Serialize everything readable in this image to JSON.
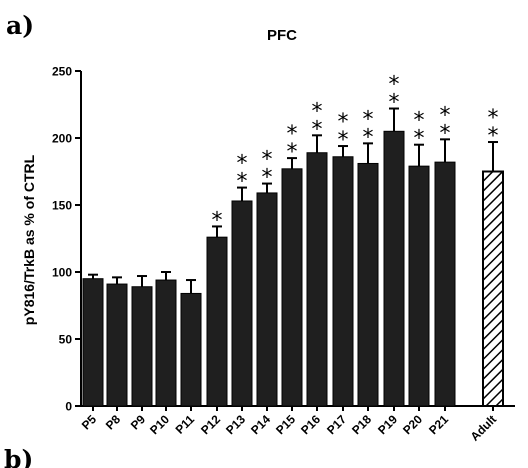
{
  "panel_labels": {
    "top": "a)",
    "bottom": "b)"
  },
  "chart_data": {
    "type": "bar",
    "title": "PFC",
    "xlabel": "",
    "ylabel": "pY816/TrkB as % of CTRL",
    "ylim": [
      0,
      250
    ],
    "yticks": [
      0,
      50,
      100,
      150,
      200,
      250
    ],
    "categories": [
      "P5",
      "P8",
      "P9",
      "P10",
      "P11",
      "P12",
      "P13",
      "P14",
      "P15",
      "P16",
      "P17",
      "P18",
      "P19",
      "P20",
      "P21",
      "Adult"
    ],
    "values": [
      95,
      91,
      89,
      94,
      84,
      126,
      153,
      159,
      177,
      189,
      186,
      181,
      205,
      179,
      182,
      175
    ],
    "errors": [
      3,
      5,
      8,
      6,
      10,
      8,
      10,
      7,
      8,
      13,
      8,
      15,
      17,
      16,
      17,
      22
    ],
    "significance": [
      "",
      "",
      "",
      "",
      "",
      "*",
      "**",
      "**",
      "**",
      "**",
      "**",
      "**",
      "**",
      "**",
      "**",
      "**"
    ],
    "bar_fill": [
      "solid",
      "solid",
      "solid",
      "solid",
      "solid",
      "solid",
      "solid",
      "solid",
      "solid",
      "solid",
      "solid",
      "solid",
      "solid",
      "solid",
      "solid",
      "hatched"
    ],
    "grid": false,
    "legend": "none",
    "colors": {
      "bar": "#1f1f1f",
      "axis": "#000000"
    }
  }
}
